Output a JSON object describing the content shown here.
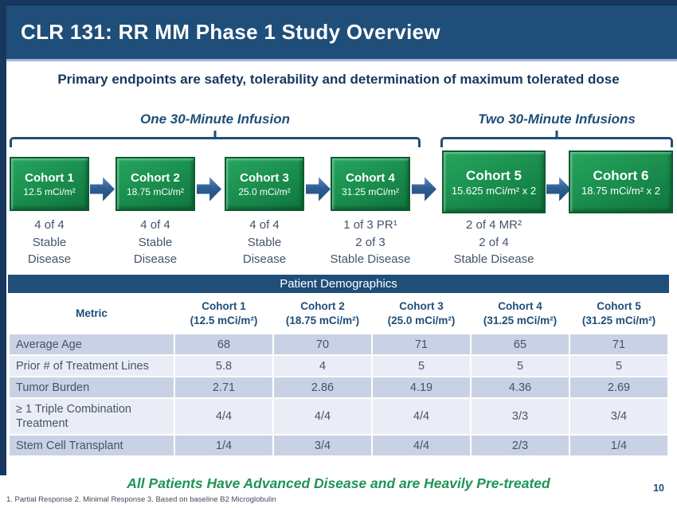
{
  "slide": {
    "title": "CLR 131: RR MM Phase 1 Study Overview",
    "subtitle": "Primary endpoints are safety, tolerability and determination of maximum tolerated dose",
    "bottom_statement": "All Patients Have Advanced Disease and are Heavily Pre-treated",
    "footnote": "1. Partial Response  2. Minimal Response 3. Based on baseline B2 Microglobulin",
    "page_number": "10"
  },
  "colors": {
    "header_bg": "#1F4E79",
    "outer_border": "#17375E",
    "cohort_green": "#1B9150",
    "arrow_blue": "#1F4E79",
    "stripe_dark": "#C8D2E4",
    "stripe_light": "#EAEDF5",
    "statement_green": "#1E9455"
  },
  "groups": [
    {
      "label": "One 30-Minute Infusion"
    },
    {
      "label": "Two 30-Minute Infusions"
    }
  ],
  "cohorts": [
    {
      "name": "Cohort  1",
      "dose": "12.5 mCi/m²",
      "status_lines": [
        "4 of 4",
        "Stable",
        "Disease"
      ]
    },
    {
      "name": "Cohort  2",
      "dose": "18.75 mCi/m²",
      "status_lines": [
        "4 of 4",
        "Stable",
        "Disease"
      ]
    },
    {
      "name": "Cohort  3",
      "dose": "25.0 mCi/m²",
      "status_lines": [
        "4 of 4",
        "Stable",
        "Disease"
      ]
    },
    {
      "name": "Cohort  4",
      "dose": "31.25 mCi/m²",
      "status_lines": [
        "1 of 3 PR¹",
        "2 of 3",
        "Stable Disease"
      ]
    },
    {
      "name": "Cohort 5",
      "dose": "15.625 mCi/m² x 2",
      "status_lines": [
        "2 of 4 MR²",
        "2 of 4",
        "Stable Disease"
      ]
    },
    {
      "name": "Cohort 6",
      "dose": "18.75 mCi/m² x 2",
      "status_lines": []
    }
  ],
  "table": {
    "title": "Patient Demographics",
    "metric_header": "Metric",
    "columns": [
      {
        "line1": "Cohort 1",
        "line2": "(12.5 mCi/m²)"
      },
      {
        "line1": "Cohort 2",
        "line2": "(18.75 mCi/m²)"
      },
      {
        "line1": "Cohort 3",
        "line2": "(25.0 mCi/m²)"
      },
      {
        "line1": "Cohort 4",
        "line2": "(31.25 mCi/m²)"
      },
      {
        "line1": "Cohort 5",
        "line2": "(31.25 mCi/m²)"
      }
    ],
    "rows": [
      {
        "metric": "Average Age",
        "values": [
          "68",
          "70",
          "71",
          "65",
          "71"
        ]
      },
      {
        "metric": "Prior # of Treatment Lines",
        "values": [
          "5.8",
          "4",
          "5",
          "5",
          "5"
        ]
      },
      {
        "metric": "Tumor Burden",
        "values": [
          "2.71",
          "2.86",
          "4.19",
          "4.36",
          "2.69"
        ]
      },
      {
        "metric": "≥ 1 Triple Combination Treatment",
        "values": [
          "4/4",
          "4/4",
          "4/4",
          "3/3",
          "3/4"
        ]
      },
      {
        "metric": "Stem Cell Transplant",
        "values": [
          "1/4",
          "3/4",
          "4/4",
          "2/3",
          "1/4"
        ]
      }
    ]
  }
}
